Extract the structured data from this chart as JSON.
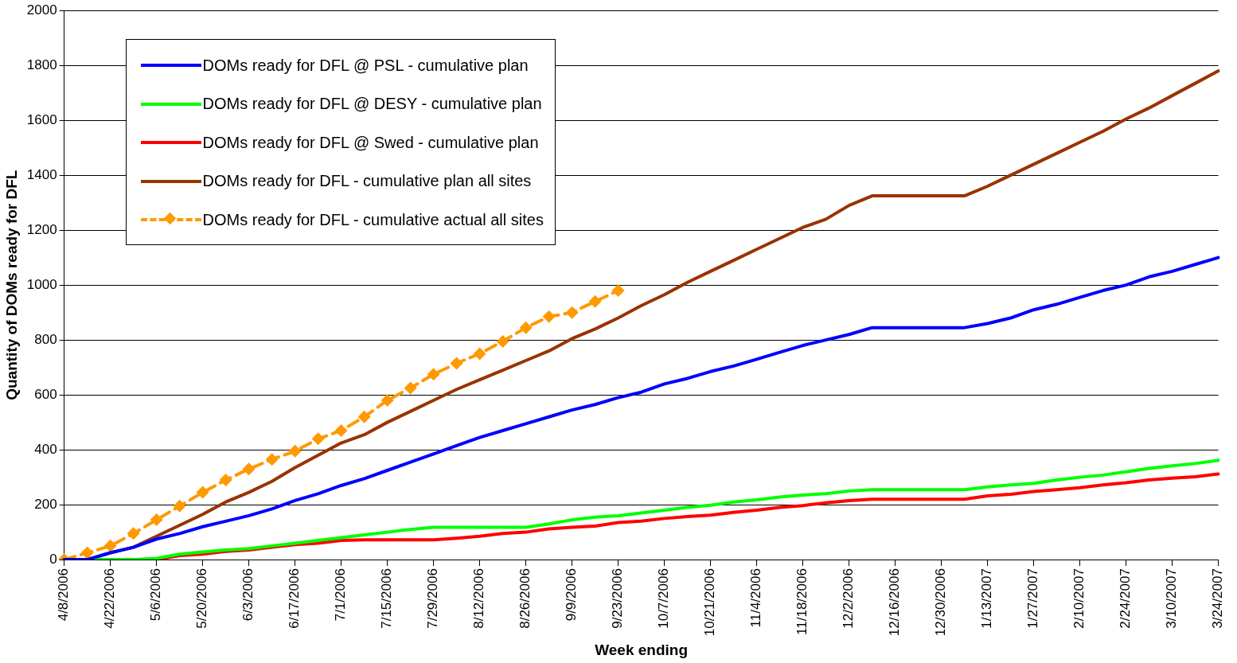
{
  "chart_data": {
    "type": "line",
    "xlabel": "Week ending",
    "ylabel": "Quantity of DOMs ready for DFL",
    "categories": [
      "4/8/2006",
      null,
      "4/22/2006",
      null,
      "5/6/2006",
      null,
      "5/20/2006",
      null,
      "6/3/2006",
      null,
      "6/17/2006",
      null,
      "7/1/2006",
      null,
      "7/15/2006",
      null,
      "7/29/2006",
      null,
      "8/12/2006",
      null,
      "8/26/2006",
      null,
      "9/9/2006",
      null,
      "9/23/2006",
      null,
      "10/7/2006",
      null,
      "10/21/2006",
      null,
      "11/4/2006",
      null,
      "11/18/2006",
      null,
      "12/2/2006",
      null,
      "12/16/2006",
      null,
      "12/30/2006",
      null,
      "1/13/2007",
      null,
      "1/27/2007",
      null,
      "2/10/2007",
      null,
      "2/24/2007",
      null,
      "3/10/2007",
      null,
      "3/24/2007"
    ],
    "series": [
      {
        "name": "DOMs ready for DFL @ PSL - cumulative plan",
        "color": "#0000ff",
        "marker": "none",
        "line_style": "solid",
        "values": [
          0,
          0,
          25,
          45,
          75,
          95,
          120,
          140,
          160,
          185,
          215,
          240,
          270,
          295,
          325,
          355,
          385,
          415,
          445,
          470,
          495,
          520,
          545,
          565,
          590,
          610,
          640,
          660,
          685,
          705,
          730,
          755,
          780,
          800,
          820,
          845,
          845,
          845,
          845,
          845,
          860,
          880,
          910,
          930,
          955,
          980,
          1000,
          1030,
          1050,
          1075,
          1100
        ]
      },
      {
        "name": "DOMs ready for DFL @ DESY - cumulative plan",
        "color": "#00ff00",
        "marker": "none",
        "line_style": "solid",
        "values": [
          0,
          0,
          0,
          0,
          5,
          20,
          28,
          35,
          40,
          50,
          60,
          70,
          80,
          90,
          100,
          110,
          118,
          118,
          118,
          118,
          118,
          130,
          145,
          155,
          160,
          170,
          180,
          190,
          198,
          210,
          218,
          228,
          235,
          240,
          250,
          255,
          255,
          255,
          255,
          255,
          265,
          272,
          278,
          290,
          300,
          308,
          320,
          332,
          342,
          350,
          362
        ]
      },
      {
        "name": "DOMs ready for DFL @ Swed - cumulative plan",
        "color": "#ff0000",
        "marker": "none",
        "line_style": "solid",
        "values": [
          null,
          null,
          null,
          0,
          0,
          15,
          20,
          30,
          35,
          45,
          55,
          60,
          70,
          72,
          72,
          72,
          72,
          78,
          85,
          95,
          100,
          112,
          118,
          122,
          135,
          140,
          150,
          157,
          162,
          172,
          180,
          190,
          197,
          207,
          215,
          220,
          220,
          220,
          220,
          220,
          232,
          238,
          248,
          255,
          262,
          272,
          280,
          290,
          297,
          302,
          312
        ]
      },
      {
        "name": "DOMs ready for DFL - cumulative plan all sites",
        "color": "#993300",
        "marker": "none",
        "line_style": "solid",
        "values": [
          0,
          0,
          25,
          45,
          85,
          125,
          165,
          210,
          245,
          285,
          335,
          380,
          425,
          455,
          500,
          540,
          580,
          620,
          655,
          690,
          725,
          760,
          805,
          840,
          880,
          925,
          965,
          1010,
          1050,
          1090,
          1130,
          1170,
          1210,
          1240,
          1290,
          1325,
          1325,
          1325,
          1325,
          1325,
          1360,
          1400,
          1440,
          1480,
          1520,
          1560,
          1605,
          1645,
          1690,
          1735,
          1780
        ]
      },
      {
        "name": "DOMs ready for DFL - cumulative actual all sites",
        "color": "#ff9900",
        "marker": "diamond",
        "line_style": "dashed",
        "values": [
          0,
          25,
          50,
          95,
          145,
          195,
          245,
          290,
          330,
          365,
          395,
          440,
          470,
          520,
          580,
          625,
          675,
          715,
          750,
          795,
          845,
          885,
          900,
          940,
          980,
          null,
          null,
          null,
          null,
          null,
          null,
          null,
          null,
          null,
          null,
          null,
          null,
          null,
          null,
          null,
          null,
          null,
          null,
          null,
          null,
          null,
          null,
          null,
          null,
          null,
          null
        ]
      }
    ],
    "ylim": [
      0,
      2000
    ],
    "yticks": [
      0,
      200,
      400,
      600,
      800,
      1000,
      1200,
      1400,
      1600,
      1800,
      2000
    ],
    "grid": "y",
    "legend": "top left"
  }
}
